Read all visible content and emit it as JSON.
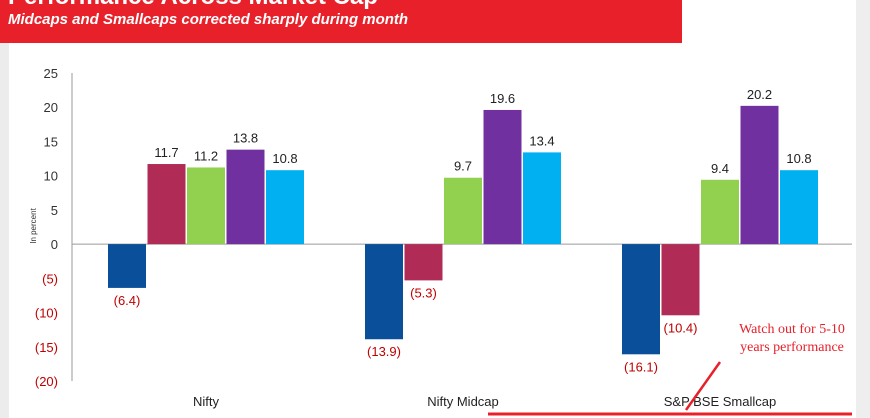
{
  "header": {
    "title": "Performance Across Market Cap",
    "subtitle": "Midcaps and Smallcaps corrected sharply during month"
  },
  "annotation": {
    "text": "Watch out for 5-10\nyears performance",
    "color": "#e8202a"
  },
  "chart_data": {
    "type": "bar",
    "ylabel": "In percent",
    "ylim": [
      -20,
      25
    ],
    "yticks": [
      25,
      20,
      15,
      10,
      5,
      0,
      -5,
      -10,
      -15,
      -20
    ],
    "ytick_labels": [
      "25",
      "20",
      "15",
      "10",
      "5",
      "0",
      "(5)",
      "(10)",
      "(15)",
      "(20)"
    ],
    "categories": [
      "Nifty",
      "Nifty Midcap",
      "S&P BSE Smallcap"
    ],
    "grid": false,
    "legend": "none",
    "series": [
      {
        "color": "#0a4f9a",
        "values": [
          -6.4,
          -13.9,
          -16.1
        ],
        "labels": [
          "(6.4)",
          "(13.9)",
          "(16.1)"
        ]
      },
      {
        "color": "#b02c57",
        "values": [
          11.7,
          -5.3,
          -10.4
        ],
        "labels": [
          "11.7",
          "(5.3)",
          "(10.4)"
        ]
      },
      {
        "color": "#92d050",
        "values": [
          11.2,
          9.7,
          9.4
        ],
        "labels": [
          "11.2",
          "9.7",
          "9.4"
        ]
      },
      {
        "color": "#7030a0",
        "values": [
          13.8,
          19.6,
          20.2
        ],
        "labels": [
          "13.8",
          "19.6",
          "20.2"
        ]
      },
      {
        "color": "#00b0f0",
        "values": [
          10.8,
          13.4,
          10.8
        ],
        "labels": [
          "10.8",
          "13.4",
          "10.8"
        ]
      }
    ],
    "negative_label_color": "#c00000"
  }
}
